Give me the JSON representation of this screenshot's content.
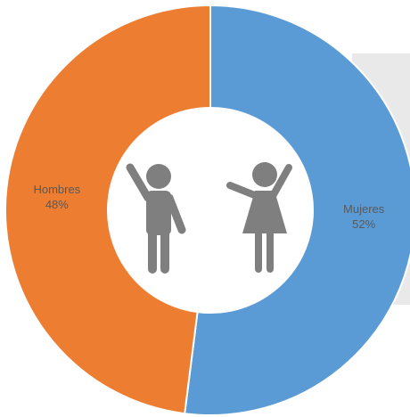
{
  "chart_data": {
    "type": "donut",
    "categories": [
      "Mujeres",
      "Hombres"
    ],
    "values": [
      52,
      48
    ],
    "value_labels": [
      "52%",
      "48%"
    ],
    "colors": [
      "#5b9bd5",
      "#ed7d31"
    ]
  }
}
